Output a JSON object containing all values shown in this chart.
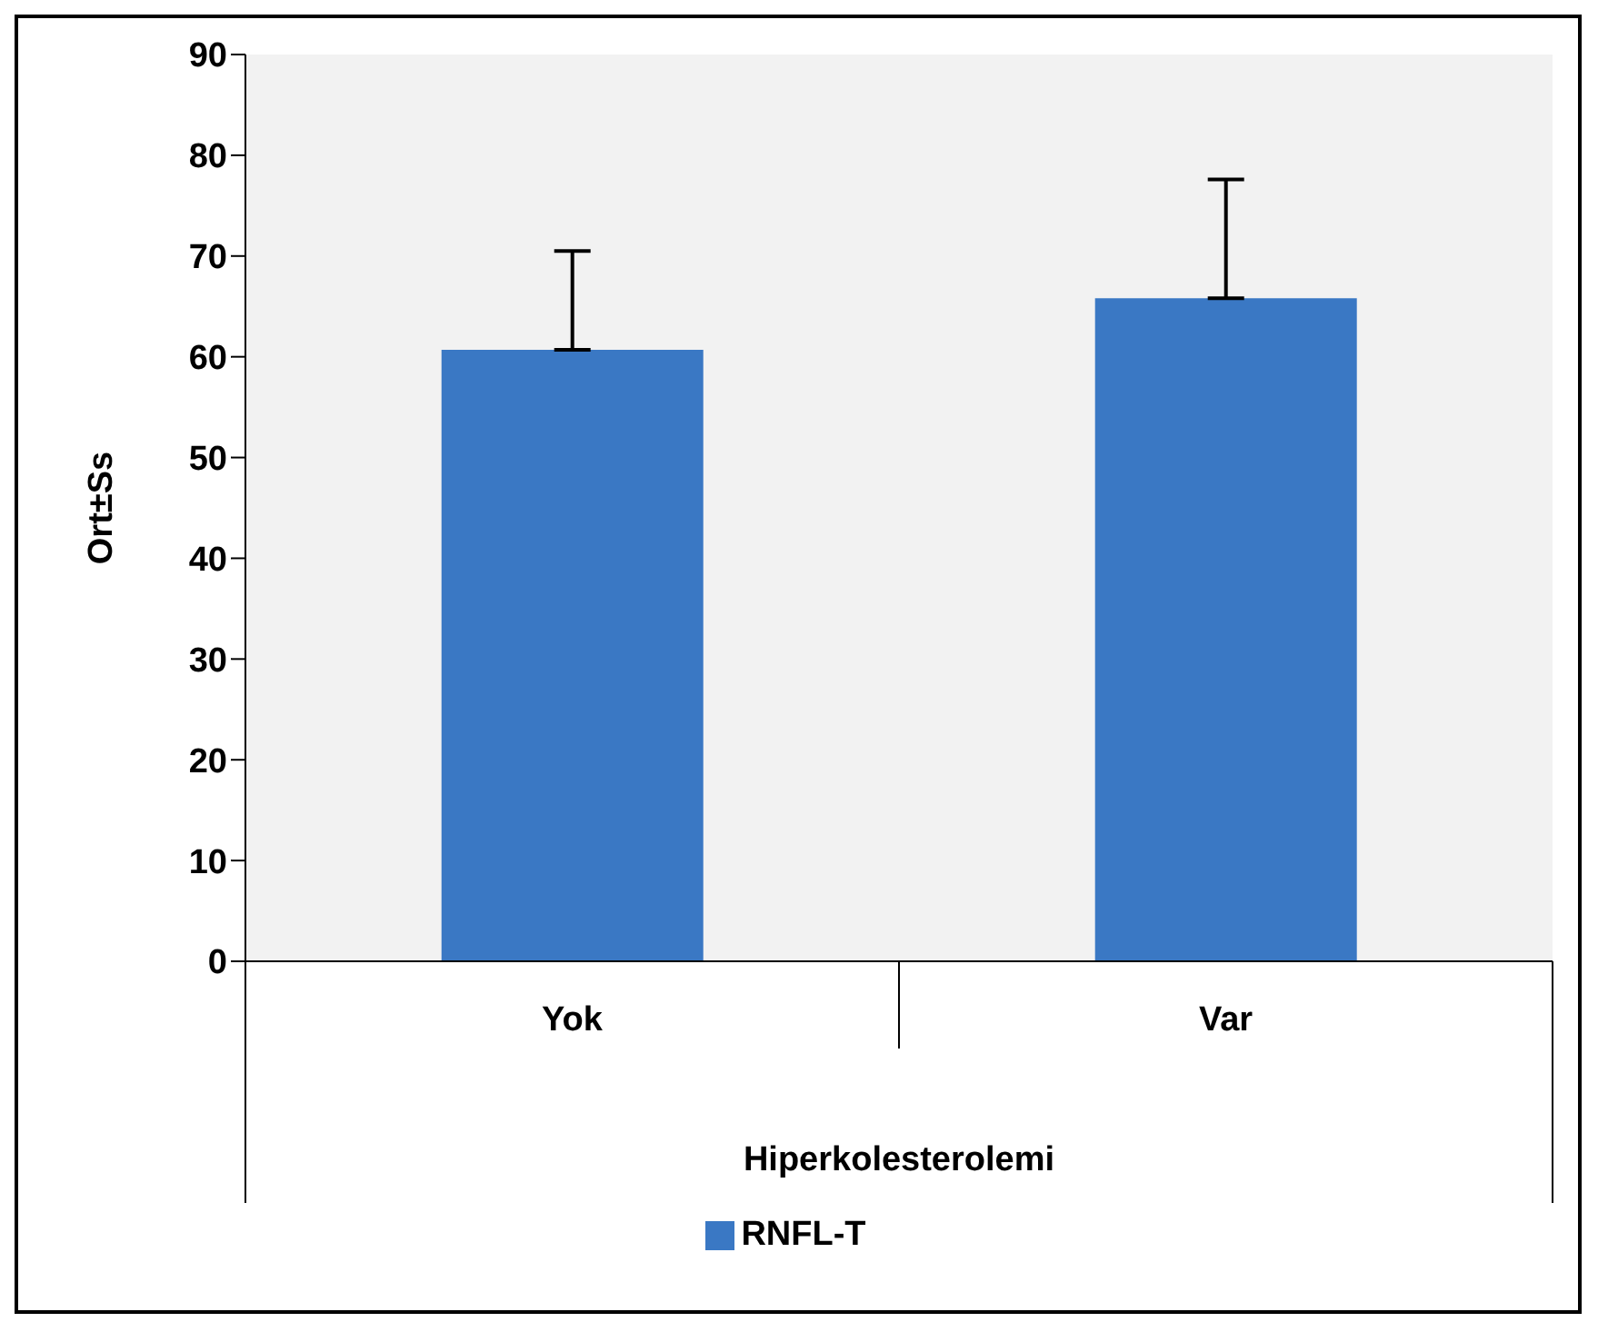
{
  "chart_data": {
    "type": "bar",
    "xlabel": "Hiperkolesterolemi",
    "ylabel": "Ort±Ss",
    "categories": [
      "Yok",
      "Var"
    ],
    "series": [
      {
        "name": "RNFL-T",
        "color": "#3a78c4",
        "values": [
          60.7,
          65.8
        ],
        "errors": [
          [
            60.7,
            70.5
          ],
          [
            65.8,
            77.6
          ]
        ]
      }
    ],
    "ylim": [
      0,
      90
    ],
    "yticks": [
      0,
      10,
      20,
      30,
      40,
      50,
      60,
      70,
      80,
      90
    ],
    "grid": false,
    "legend": "bottom"
  }
}
